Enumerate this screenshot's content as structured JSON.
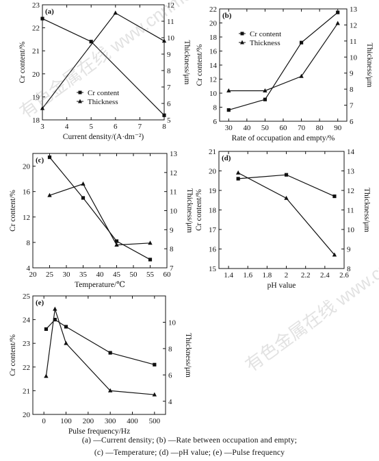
{
  "watermark": "有色金属在线 www.cnnmol.com",
  "caption": {
    "line1": "(a) —Current density; (b) —Rate between occupation and empty;",
    "line2": "(c) —Temperature; (d) —pH value; (e) —Pulse frequency"
  },
  "colors": {
    "series": "#111111"
  },
  "chart_data": [
    {
      "panel": "(a)",
      "type": "line",
      "xlabel": "Current density/(A·dm⁻²)",
      "ylabel_left": "Cr content/%",
      "ylabel_right": "Thickness/μm",
      "xlim": [
        3,
        8
      ],
      "xticks": [
        3,
        4,
        5,
        6,
        7,
        8
      ],
      "ylim_left": [
        18,
        23
      ],
      "yticks_left": [
        18,
        19,
        20,
        21,
        22,
        23
      ],
      "ylim_right": [
        5,
        12
      ],
      "yticks_right": [
        5,
        6,
        7,
        8,
        9,
        10,
        11,
        12
      ],
      "legend": "bottom-right",
      "series": [
        {
          "name": "Cr content",
          "marker": "square",
          "axis": "left",
          "x": [
            3,
            5,
            8
          ],
          "y": [
            22.4,
            21.4,
            18.2
          ]
        },
        {
          "name": "Thickness",
          "marker": "triangle",
          "axis": "right",
          "x": [
            3,
            6,
            8
          ],
          "y": [
            5.7,
            11.5,
            9.8
          ]
        }
      ]
    },
    {
      "panel": "(b)",
      "type": "line",
      "xlabel": "Rate of occupation and empty/%",
      "ylabel_left": "Cr content/%",
      "ylabel_right": "Thickness/μm",
      "xlim": [
        25,
        95
      ],
      "xticks": [
        30,
        40,
        50,
        60,
        70,
        80,
        90
      ],
      "ylim_left": [
        6,
        22
      ],
      "yticks_left": [
        6,
        8,
        10,
        12,
        14,
        16,
        18,
        20,
        22
      ],
      "ylim_right": [
        6,
        13
      ],
      "yticks_right": [
        6,
        7,
        8,
        9,
        10,
        11,
        12,
        13
      ],
      "legend": "top-left",
      "series": [
        {
          "name": "Cr content",
          "marker": "square",
          "axis": "left",
          "x": [
            30,
            50,
            70,
            90
          ],
          "y": [
            7.6,
            9.1,
            17.2,
            21.5
          ]
        },
        {
          "name": "Thickness",
          "marker": "triangle",
          "axis": "right",
          "x": [
            30,
            50,
            70,
            90
          ],
          "y": [
            7.9,
            7.9,
            8.8,
            12.1
          ]
        }
      ]
    },
    {
      "panel": "(c)",
      "type": "line",
      "xlabel": "Temperature/℃",
      "ylabel_left": "Cr content/%",
      "ylabel_right": "Thickness/μm",
      "xlim": [
        20,
        60
      ],
      "xticks": [
        20,
        25,
        30,
        35,
        40,
        45,
        50,
        55,
        60
      ],
      "ylim_left": [
        4,
        22
      ],
      "yticks_left": [
        4,
        8,
        12,
        16,
        20
      ],
      "ylim_right": [
        7,
        13
      ],
      "yticks_right": [
        7,
        8,
        9,
        10,
        11,
        12,
        13
      ],
      "series": [
        {
          "name": "Cr content",
          "marker": "square",
          "axis": "left",
          "x": [
            25,
            35,
            45,
            55
          ],
          "y": [
            21.4,
            15.0,
            8.2,
            5.3
          ]
        },
        {
          "name": "Thickness",
          "marker": "triangle",
          "axis": "right",
          "x": [
            25,
            35,
            45,
            55
          ],
          "y": [
            10.8,
            11.4,
            8.2,
            8.3
          ]
        }
      ]
    },
    {
      "panel": "(d)",
      "type": "line",
      "xlabel": "pH value",
      "ylabel_left": "Cr content/%",
      "ylabel_right": "Thickness/μm",
      "xlim": [
        1.3,
        2.6
      ],
      "xticks": [
        1.4,
        1.6,
        1.8,
        2.0,
        2.2,
        2.4,
        2.6
      ],
      "ylim_left": [
        15,
        21
      ],
      "yticks_left": [
        15,
        16,
        17,
        18,
        19,
        20,
        21
      ],
      "ylim_right": [
        8,
        14
      ],
      "yticks_right": [
        8,
        9,
        10,
        11,
        12,
        13,
        14
      ],
      "series": [
        {
          "name": "Cr content",
          "marker": "square",
          "axis": "left",
          "x": [
            1.5,
            2.0,
            2.5
          ],
          "y": [
            19.6,
            19.8,
            18.7
          ]
        },
        {
          "name": "Thickness",
          "marker": "triangle",
          "axis": "right",
          "x": [
            1.5,
            2.0,
            2.5
          ],
          "y": [
            12.9,
            11.6,
            8.7
          ]
        }
      ]
    },
    {
      "panel": "(e)",
      "type": "line",
      "xlabel": "Pulse frequency/Hz",
      "ylabel_left": "Cr content/%",
      "ylabel_right": "Thickness/μm",
      "xlim": [
        -50,
        550
      ],
      "xticks": [
        0,
        100,
        200,
        300,
        400,
        500
      ],
      "ylim_left": [
        20,
        25
      ],
      "yticks_left": [
        20,
        21,
        22,
        23,
        24,
        25
      ],
      "ylim_right": [
        3,
        12
      ],
      "yticks_right": [
        4,
        6,
        8,
        10
      ],
      "series": [
        {
          "name": "Cr content",
          "marker": "square",
          "axis": "left",
          "x": [
            10,
            50,
            100,
            300,
            500
          ],
          "y": [
            23.6,
            24.0,
            23.7,
            22.6,
            22.1
          ]
        },
        {
          "name": "Thickness",
          "marker": "triangle",
          "axis": "right",
          "x": [
            10,
            50,
            100,
            300,
            500
          ],
          "y": [
            5.9,
            11.0,
            8.4,
            4.8,
            4.5
          ]
        }
      ]
    }
  ]
}
